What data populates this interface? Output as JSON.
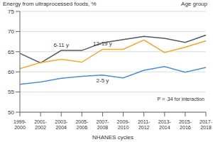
{
  "chart_data": {
    "type": "line",
    "y_label": "Energy from ultraprocessed foods, %",
    "x_label": "NHANES cycles",
    "annotations": [
      "Age group",
      "P = .34 for interaction"
    ],
    "categories": [
      "1999-2000",
      "2001-2002",
      "2003-2004",
      "2005-2006",
      "2007-2008",
      "2009-2010",
      "2011-2012",
      "2013-2014",
      "2015-2016",
      "2017-2018"
    ],
    "series": [
      {
        "name": "6-11 y",
        "color": "#4d5b69",
        "values": [
          64.6,
          62.2,
          65.3,
          65.3,
          67.2,
          68.0,
          68.8,
          68.3,
          67.3,
          69.1
        ]
      },
      {
        "name": "12-19 y",
        "color": "#f5a623",
        "values": [
          60.8,
          62.3,
          63.1,
          62.4,
          65.6,
          65.6,
          67.9,
          64.8,
          66.1,
          67.7
        ]
      },
      {
        "name": "2-5 y",
        "color": "#4a8fd8",
        "values": [
          56.9,
          57.5,
          58.4,
          58.9,
          59.2,
          58.5,
          60.4,
          61.3,
          59.9,
          61.1
        ]
      }
    ],
    "ylim": [
      50,
      75
    ],
    "yticks": [
      50,
      55,
      60,
      65,
      70,
      75
    ],
    "grid": true
  }
}
